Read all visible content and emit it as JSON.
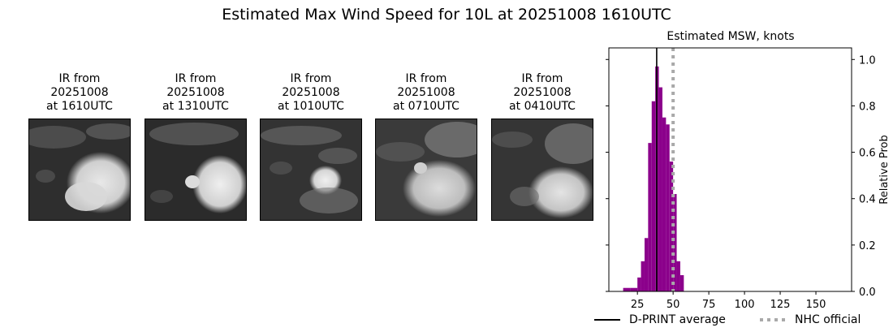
{
  "title": "Estimated Max Wind Speed for 10L at 20251008 1610UTC",
  "ir_panels": [
    {
      "line1": "IR from",
      "line2": "20251008",
      "line3": "at 1610UTC"
    },
    {
      "line1": "IR from",
      "line2": "20251008",
      "line3": "at 1310UTC"
    },
    {
      "line1": "IR from",
      "line2": "20251008",
      "line3": "at 1010UTC"
    },
    {
      "line1": "IR from",
      "line2": "20251008",
      "line3": "at 0710UTC"
    },
    {
      "line1": "IR from",
      "line2": "20251008",
      "line3": "at 0410UTC"
    }
  ],
  "chart_data": {
    "type": "bar",
    "title": "Estimated MSW, knots",
    "xlabel": "",
    "ylabel": "Relative Prob",
    "xlim": [
      5,
      175
    ],
    "ylim": [
      0,
      1.05
    ],
    "xticks": [
      25,
      50,
      75,
      100,
      125,
      150
    ],
    "yticks": [
      0.0,
      0.2,
      0.4,
      0.6,
      0.8,
      1.0
    ],
    "bar_color": "#8b008b",
    "bins": [
      {
        "x0": 15,
        "x1": 20,
        "value": 0.015
      },
      {
        "x0": 20,
        "x1": 25,
        "value": 0.015
      },
      {
        "x0": 25,
        "x1": 27.5,
        "value": 0.06
      },
      {
        "x0": 27.5,
        "x1": 30,
        "value": 0.13
      },
      {
        "x0": 30,
        "x1": 32.5,
        "value": 0.23
      },
      {
        "x0": 32.5,
        "x1": 35,
        "value": 0.64
      },
      {
        "x0": 35,
        "x1": 37.5,
        "value": 0.82
      },
      {
        "x0": 37.5,
        "x1": 40,
        "value": 0.97
      },
      {
        "x0": 40,
        "x1": 42.5,
        "value": 0.88
      },
      {
        "x0": 42.5,
        "x1": 45,
        "value": 0.75
      },
      {
        "x0": 45,
        "x1": 47.5,
        "value": 0.72
      },
      {
        "x0": 47.5,
        "x1": 50,
        "value": 0.56
      },
      {
        "x0": 50,
        "x1": 52.5,
        "value": 0.42
      },
      {
        "x0": 52.5,
        "x1": 55,
        "value": 0.13
      },
      {
        "x0": 55,
        "x1": 57.5,
        "value": 0.07
      }
    ],
    "dprint_average": 38.5,
    "nhc_official": 50,
    "legend": [
      {
        "label": "D-PRINT average",
        "style": "solid",
        "color": "#000000"
      },
      {
        "label": "NHC official",
        "style": "dotted",
        "color": "#a9a9a9"
      }
    ]
  }
}
